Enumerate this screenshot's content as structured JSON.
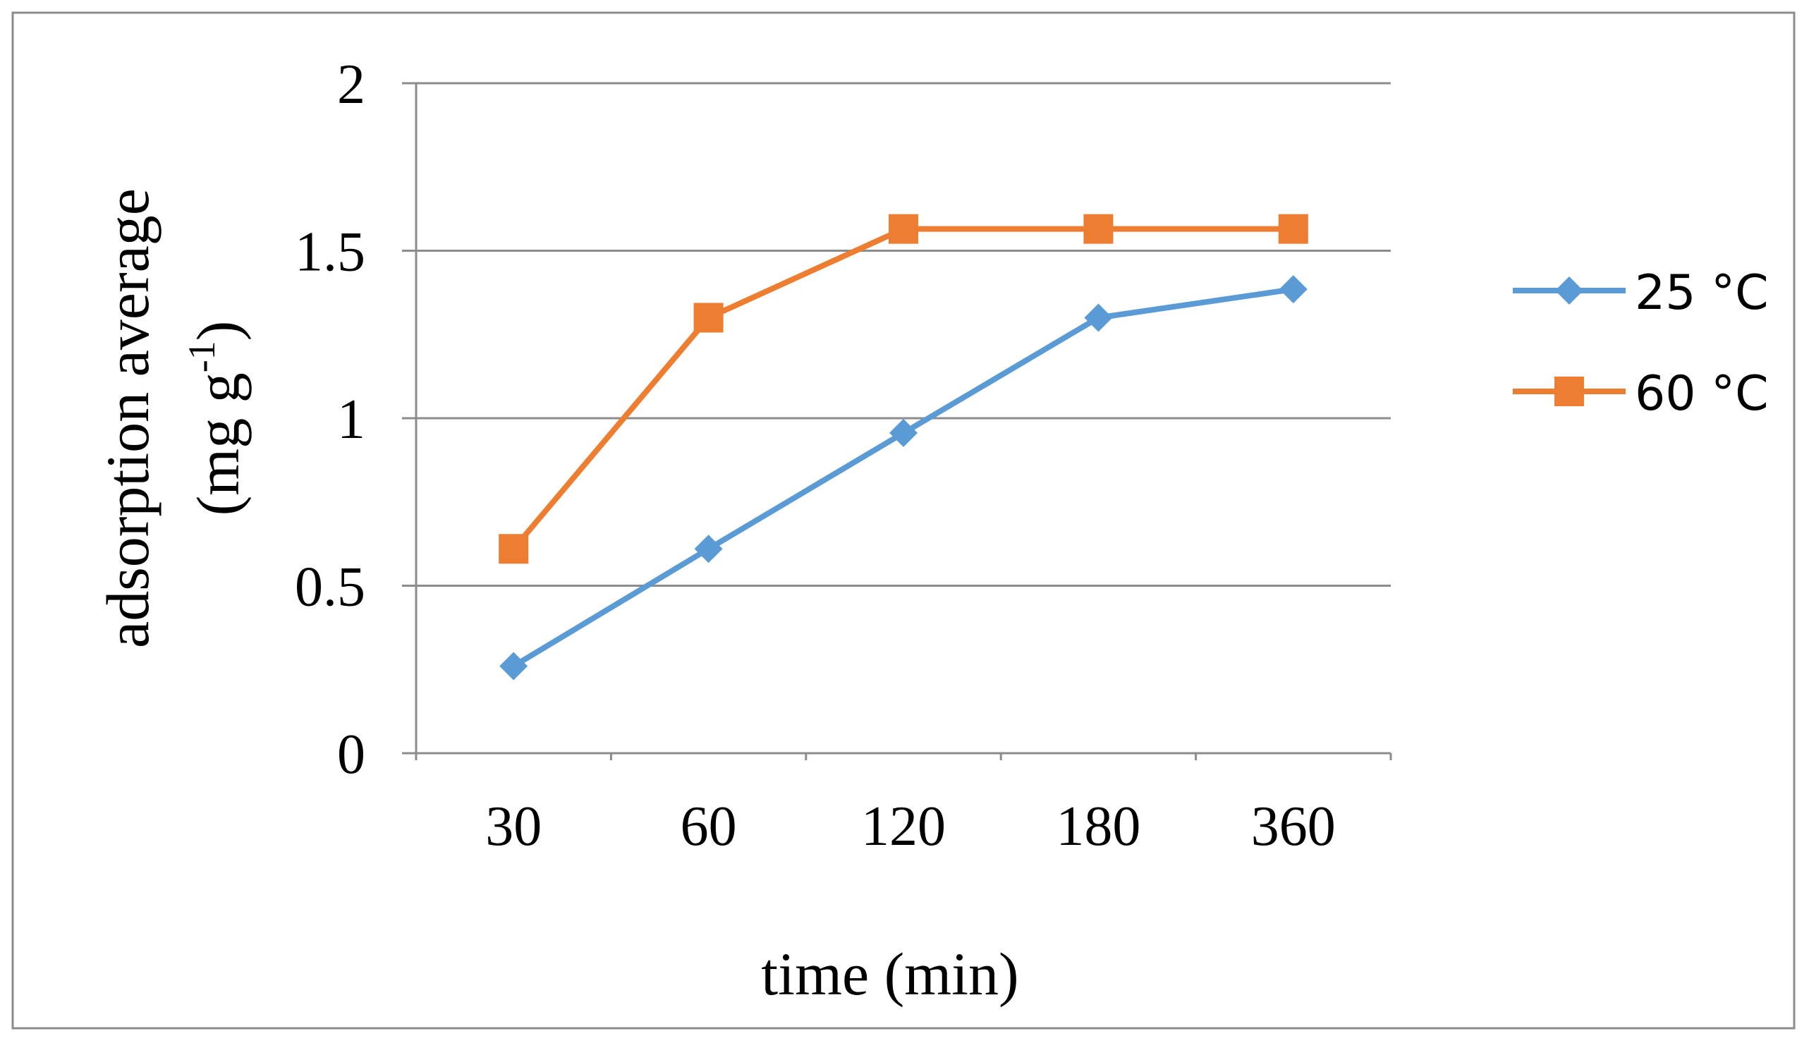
{
  "chart_data": {
    "type": "line",
    "categories": [
      "30",
      "60",
      "120",
      "180",
      "360"
    ],
    "series": [
      {
        "name": "25 °C",
        "values": [
          0.26,
          0.61,
          0.956,
          1.3,
          1.385
        ],
        "color": "#5b9bd5",
        "marker": "diamond"
      },
      {
        "name": "60 °C",
        "values": [
          0.61,
          1.3,
          1.565,
          1.565,
          1.565
        ],
        "color": "#ed7d31",
        "marker": "square"
      }
    ],
    "title": "",
    "xlabel": "time (min)",
    "ylabel_line1": "adsorption average",
    "ylabel_line2_main": "(mg g",
    "ylabel_line2_sup": "-1",
    "ylabel_line2_end": ")",
    "yticks": [
      "0",
      "0.5",
      "1",
      "1.5",
      "2"
    ],
    "ylim": [
      0,
      2
    ],
    "grid": true,
    "legend_position": "right"
  }
}
